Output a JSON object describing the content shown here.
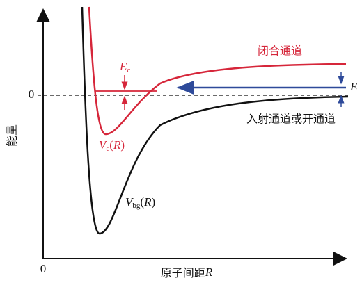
{
  "axes": {
    "y_label": "能量",
    "y_zero": "0",
    "origin": "0",
    "x_label": {
      "text": "原子间距",
      "symbol": "R"
    }
  },
  "labels": {
    "closed_channel": "闭合通道",
    "open_channel": "入射通道或开通道",
    "energy": "E",
    "ec": {
      "symbol": "E",
      "sub": "c"
    },
    "vc": {
      "symbol": "V",
      "sub": "c",
      "open": "(",
      "arg": "R",
      "close": ")"
    },
    "vbg": {
      "symbol": "V",
      "sub": "bg",
      "open": "(",
      "arg": "R",
      "close": ")"
    }
  }
}
